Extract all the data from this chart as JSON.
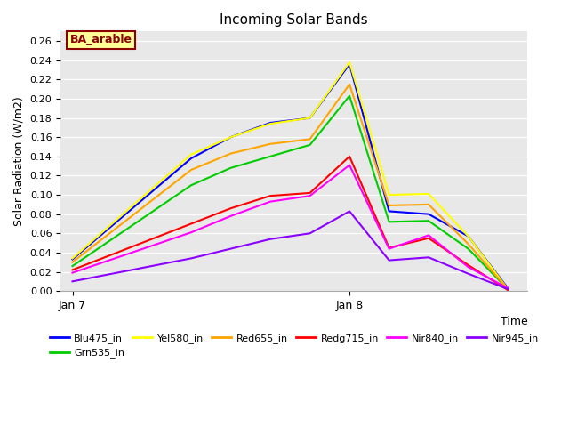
{
  "title": "Incoming Solar Bands",
  "xlabel": "Time",
  "ylabel": "Solar Radiation (W/m2)",
  "annotation_label": "BA_arable",
  "annotation_color": "#8B0000",
  "annotation_bg": "#FFFF99",
  "annotation_border": "#8B0000",
  "series": {
    "Blu475_in": {
      "color": "#0000FF",
      "data": [
        0.033,
        0.068,
        0.103,
        0.138,
        0.16,
        0.175,
        0.18,
        0.236,
        0.083,
        0.08,
        0.057,
        0.003
      ]
    },
    "Grn535_in": {
      "color": "#00CC00",
      "data": [
        0.026,
        0.054,
        0.082,
        0.11,
        0.128,
        0.14,
        0.152,
        0.203,
        0.072,
        0.073,
        0.044,
        0.002
      ]
    },
    "Yel580_in": {
      "color": "#FFFF00",
      "data": [
        0.034,
        0.07,
        0.106,
        0.142,
        0.16,
        0.174,
        0.18,
        0.238,
        0.1,
        0.101,
        0.057,
        0.002
      ]
    },
    "Red655_in": {
      "color": "#FFA500",
      "data": [
        0.03,
        0.062,
        0.094,
        0.126,
        0.143,
        0.153,
        0.158,
        0.215,
        0.089,
        0.09,
        0.049,
        0.002
      ]
    },
    "Redg715_in": {
      "color": "#FF0000",
      "data": [
        0.022,
        0.038,
        0.054,
        0.07,
        0.086,
        0.099,
        0.102,
        0.14,
        0.045,
        0.055,
        0.027,
        0.001
      ]
    },
    "Nir840_in": {
      "color": "#FF00FF",
      "data": [
        0.019,
        0.033,
        0.047,
        0.061,
        0.078,
        0.093,
        0.099,
        0.131,
        0.044,
        0.058,
        0.025,
        0.003
      ]
    },
    "Nir945_in": {
      "color": "#8B00FF",
      "data": [
        0.01,
        0.018,
        0.026,
        0.034,
        0.044,
        0.054,
        0.06,
        0.083,
        0.032,
        0.035,
        0.018,
        0.002
      ]
    }
  },
  "x_values": [
    0,
    1,
    2,
    3,
    4,
    5,
    6,
    7,
    8,
    9,
    10,
    11
  ],
  "xtick_positions": [
    0,
    7
  ],
  "xtick_labels": [
    "Jan 7",
    "Jan 8"
  ],
  "xlim": [
    -0.3,
    11.5
  ],
  "ylim": [
    0.0,
    0.27
  ],
  "yticks": [
    0.0,
    0.02,
    0.04,
    0.06,
    0.08,
    0.1,
    0.12,
    0.14,
    0.16,
    0.18,
    0.2,
    0.22,
    0.24,
    0.26
  ],
  "bg_color": "#E8E8E8",
  "grid_color": "#FFFFFF",
  "legend_order": [
    "Blu475_in",
    "Grn535_in",
    "Yel580_in",
    "Red655_in",
    "Redg715_in",
    "Nir840_in",
    "Nir945_in"
  ]
}
